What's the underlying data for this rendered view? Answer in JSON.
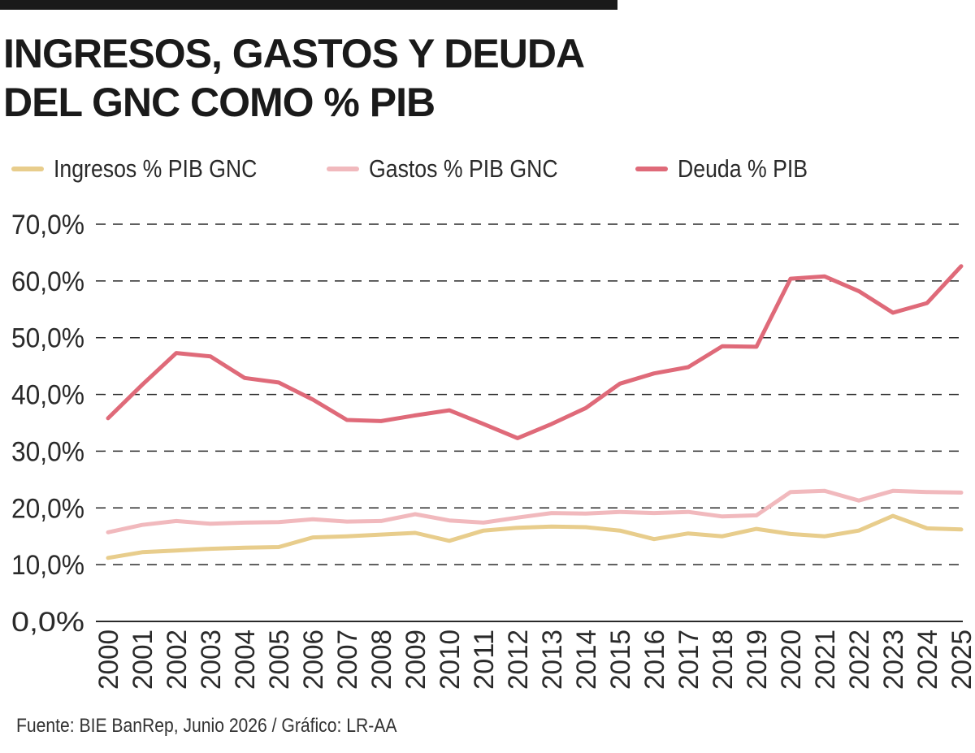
{
  "header": {
    "title_line1": "INGRESOS, GASTOS Y DEUDA",
    "title_line2": "DEL GNC COMO % PIB"
  },
  "legend": {
    "items": [
      {
        "label": "Ingresos % PIB GNC",
        "color": "#e8cd8c"
      },
      {
        "label": "Gastos % PIB GNC",
        "color": "#f1b9bd"
      },
      {
        "label": "Deuda % PIB",
        "color": "#df6a79"
      }
    ]
  },
  "footer": {
    "source": "Fuente: BIE BanRep, Junio 2026 / Gráfico: LR-AA"
  },
  "chart_data": {
    "type": "line",
    "x": [
      "2000",
      "2001",
      "2002",
      "2003",
      "2004",
      "2005",
      "2006",
      "2007",
      "2008",
      "2009",
      "2010",
      "2011",
      "2012",
      "2013",
      "2014",
      "2015",
      "2016",
      "2017",
      "2018",
      "2019",
      "2020",
      "2021",
      "2022",
      "2023",
      "2024",
      "2025"
    ],
    "yticks": [
      "0,0%",
      "10,0%",
      "20,0%",
      "30,0%",
      "40,0%",
      "50,0%",
      "60,0%",
      "70,0%"
    ],
    "ylim": [
      0,
      70
    ],
    "grid": true,
    "legend_position": "top",
    "series": [
      {
        "name": "Ingresos % PIB GNC",
        "color": "#e8cd8c",
        "values": [
          11.2,
          12.2,
          12.5,
          12.8,
          13.0,
          13.1,
          14.8,
          15.0,
          15.3,
          15.6,
          14.2,
          16.0,
          16.5,
          16.7,
          16.6,
          16.0,
          14.5,
          15.5,
          15.0,
          16.3,
          15.4,
          15.0,
          16.0,
          18.6,
          16.4,
          16.2
        ]
      },
      {
        "name": "Gastos % PIB GNC",
        "color": "#f1b9bd",
        "values": [
          15.7,
          17.0,
          17.7,
          17.2,
          17.4,
          17.5,
          18.0,
          17.6,
          17.7,
          18.9,
          17.8,
          17.4,
          18.3,
          19.1,
          19.0,
          19.3,
          19.1,
          19.3,
          18.5,
          18.7,
          22.8,
          23.0,
          21.3,
          23.0,
          22.8,
          22.7
        ]
      },
      {
        "name": "Deuda % PIB",
        "color": "#df6a79",
        "values": [
          35.8,
          41.7,
          47.3,
          46.7,
          42.9,
          42.1,
          39.1,
          35.5,
          35.3,
          36.3,
          37.2,
          34.8,
          32.3,
          34.8,
          37.6,
          41.9,
          43.7,
          44.8,
          48.5,
          48.4,
          60.4,
          60.8,
          58.2,
          54.4,
          56.1,
          62.6
        ]
      }
    ]
  }
}
